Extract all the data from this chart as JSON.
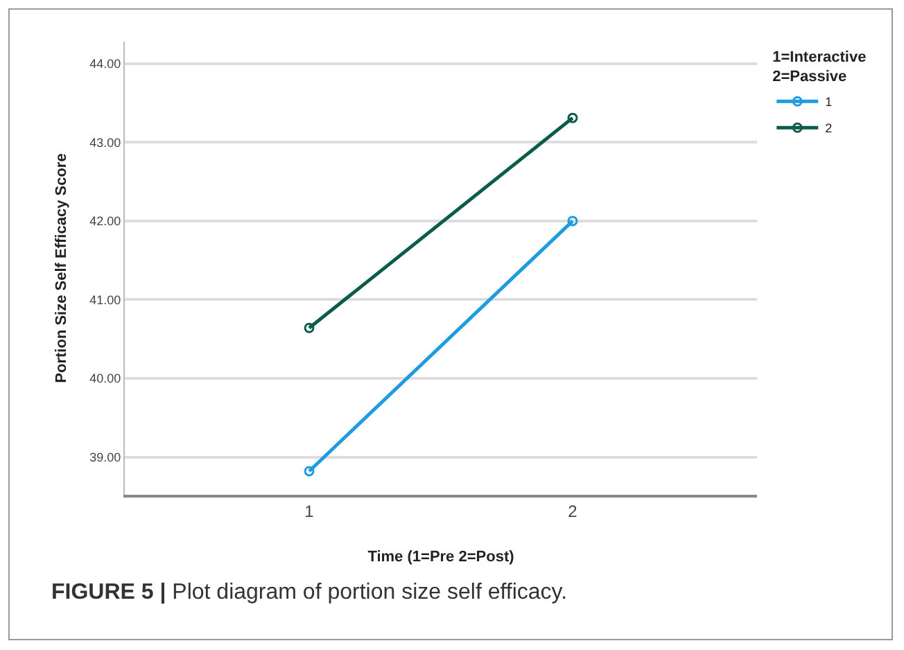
{
  "chart_data": {
    "type": "line",
    "categories": [
      "1",
      "2"
    ],
    "series": [
      {
        "name": "1",
        "color": "#1f9be0",
        "values": [
          38.82,
          42.0
        ]
      },
      {
        "name": "2",
        "color": "#0b5c4c",
        "values": [
          40.64,
          43.31
        ]
      }
    ],
    "xlabel": "Time (1=Pre 2=Post)",
    "ylabel": "Portion Size Self Efficacy Score",
    "legend_title": "1=Interactive\n2=Passive",
    "legend": "top right",
    "ylim": [
      38.52,
      44.28
    ],
    "yticks": [
      {
        "value": 39,
        "label": "39.00"
      },
      {
        "value": 40,
        "label": "40.00"
      },
      {
        "value": 41,
        "label": "41.00"
      },
      {
        "value": 42,
        "label": "42.00"
      },
      {
        "value": 43,
        "label": "43.00"
      },
      {
        "value": 44,
        "label": "44.00"
      }
    ],
    "grid": "y",
    "marker": "circle",
    "line_style": "solid",
    "annotations": [
      "FIGURE 5 | Plot diagram of portion size self efficacy."
    ]
  }
}
